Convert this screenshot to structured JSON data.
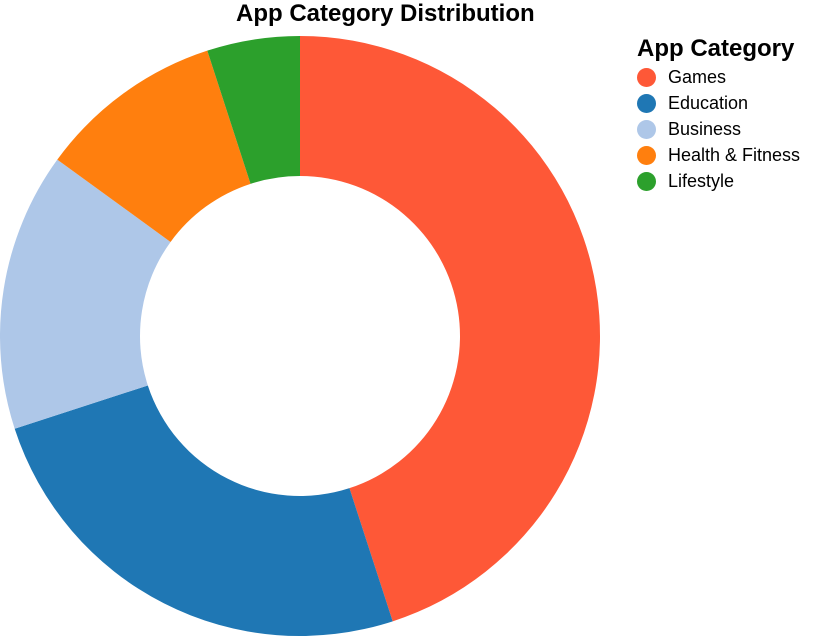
{
  "chart_data": {
    "type": "pie",
    "title": "App Category Distribution",
    "legend_title": "App Category",
    "legend_position": "top-right",
    "donut": true,
    "categories": [
      "Games",
      "Education",
      "Business",
      "Health & Fitness",
      "Lifestyle"
    ],
    "values": [
      45,
      25,
      15,
      10,
      5
    ],
    "colors": [
      "#fe5837",
      "#1f77b4",
      "#aec7e8",
      "#ff7f0e",
      "#2ca02c"
    ]
  }
}
